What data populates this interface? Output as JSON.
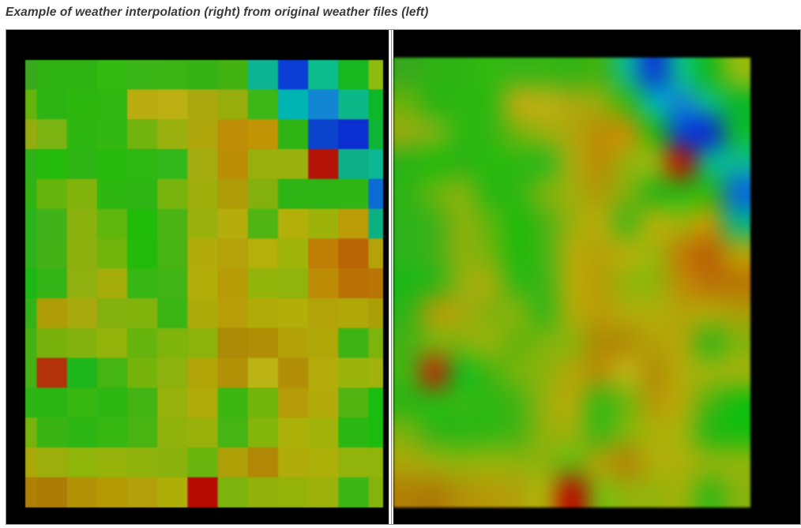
{
  "caption": {
    "text": "Example of weather interpolation (right) from original weather files (left)"
  },
  "colors": {
    "page_background": "#ffffff",
    "figure_background": "#000000",
    "figure_border": "#8f8f8f",
    "divider_fill": "#ffffff",
    "divider_line": "#8d8d8d",
    "caption_text": "#3a3a3a"
  },
  "chart_data": {
    "type": "heatmap",
    "title": "Example of weather interpolation (right) from original weather files (left)",
    "colormap": "jet-like weather palette (blue -> cyan -> green -> yellow -> orange -> red)",
    "columns": 13,
    "rows": 15,
    "legend": "none shown",
    "axes": "none shown",
    "panels": [
      {
        "side": "left",
        "content": "original weather files",
        "rendering": "discrete grid cells"
      },
      {
        "side": "right",
        "content": "interpolated weather field",
        "rendering": "smooth interpolation of same grid"
      }
    ],
    "grid_colors": [
      [
        "#38a81e",
        "#2eb313",
        "#2eb313",
        "#33ba10",
        "#3ab517",
        "#3bb513",
        "#35b315",
        "#42b312",
        "#0cb493",
        "#0a3ed4",
        "#0abd8a",
        "#17b81f",
        "#90bb0f"
      ],
      [
        "#66b30b",
        "#2db414",
        "#2eb70f",
        "#30b711",
        "#b9ac10",
        "#bcb013",
        "#a9a90f",
        "#96ad0c",
        "#3cb717",
        "#00b4b4",
        "#1286d2",
        "#0cb788",
        "#0cb72a"
      ],
      [
        "#96ab10",
        "#7ab312",
        "#2fb711",
        "#33b712",
        "#72b30d",
        "#9ab00e",
        "#afa60c",
        "#bd8e06",
        "#c09404",
        "#2eb414",
        "#0b44cc",
        "#0a2ecf",
        "#0db637"
      ],
      [
        "#2db217",
        "#24bb0c",
        "#2eb414",
        "#27bb0e",
        "#2eb811",
        "#33b81b",
        "#a4ac10",
        "#bb8e05",
        "#98b00d",
        "#9ab00e",
        "#b31407",
        "#0db089",
        "#0cb795"
      ],
      [
        "#30b414",
        "#66b40e",
        "#81b30c",
        "#2eb711",
        "#30b614",
        "#79b40e",
        "#a0ae0b",
        "#ad9c08",
        "#84b00d",
        "#2eb414",
        "#2eb414",
        "#30b614",
        "#0b6ad4"
      ],
      [
        "#2db31b",
        "#41b219",
        "#8ab10d",
        "#5fb60d",
        "#21bb0a",
        "#4cb314",
        "#9ab00c",
        "#b4ad0b",
        "#50b513",
        "#b2b009",
        "#9db30a",
        "#bb9b07",
        "#0cb183"
      ],
      [
        "#2eb31d",
        "#44b117",
        "#8db00e",
        "#71b40c",
        "#23ba0b",
        "#47b414",
        "#b2ab0a",
        "#b5a109",
        "#b5b00a",
        "#9eb40b",
        "#bf7e06",
        "#b96405",
        "#b3a309"
      ],
      [
        "#1cb815",
        "#34b416",
        "#90b00f",
        "#a4ad0b",
        "#36b713",
        "#40b515",
        "#b3ad0a",
        "#b79c07",
        "#93b40b",
        "#90b40b",
        "#bd8c06",
        "#ba7206",
        "#b97505"
      ],
      [
        "#33b317",
        "#ae9d07",
        "#a8a90c",
        "#84b10d",
        "#81b30c",
        "#3bb516",
        "#adab09",
        "#b89d08",
        "#b1ab0a",
        "#b2ae0a",
        "#b2a408",
        "#b0a808",
        "#ab9f07"
      ],
      [
        "#46b115",
        "#79b10c",
        "#83b20e",
        "#94b30a",
        "#66b40d",
        "#7eb40c",
        "#8db20b",
        "#ad8a05",
        "#b08e05",
        "#b2a208",
        "#b0a709",
        "#3eb414",
        "#7eb30e"
      ],
      [
        "#45b112",
        "#b33209",
        "#1db71c",
        "#44b512",
        "#76b40c",
        "#8db20d",
        "#b2a508",
        "#b49207",
        "#bcb414",
        "#b28f06",
        "#b3ac0a",
        "#9ab40b",
        "#a0b20b"
      ],
      [
        "#2db414",
        "#2bb513",
        "#37b811",
        "#2eb713",
        "#44b414",
        "#97b10c",
        "#b1ab09",
        "#3cb712",
        "#72b50c",
        "#b59b07",
        "#b2ab09",
        "#52b411",
        "#17bd0f"
      ],
      [
        "#79b20d",
        "#3ab414",
        "#2eb615",
        "#36b712",
        "#49b411",
        "#91b10c",
        "#9ab10b",
        "#46b513",
        "#84b50b",
        "#abb109",
        "#a2b30b",
        "#2bb713",
        "#1abd0e"
      ],
      [
        "#aaa709",
        "#9cae0b",
        "#8fb40a",
        "#97b30b",
        "#90b20c",
        "#8bb20c",
        "#6ab40e",
        "#b0a008",
        "#b18806",
        "#b0ad0a",
        "#adb009",
        "#91b30b",
        "#90b40b"
      ],
      [
        "#b08006",
        "#ac7c06",
        "#b29207",
        "#b59a06",
        "#b2a10a",
        "#aeae09",
        "#b50b02",
        "#7ab40d",
        "#92b20b",
        "#95b20b",
        "#9cb20a",
        "#3cb614",
        "#85b30d"
      ]
    ]
  }
}
